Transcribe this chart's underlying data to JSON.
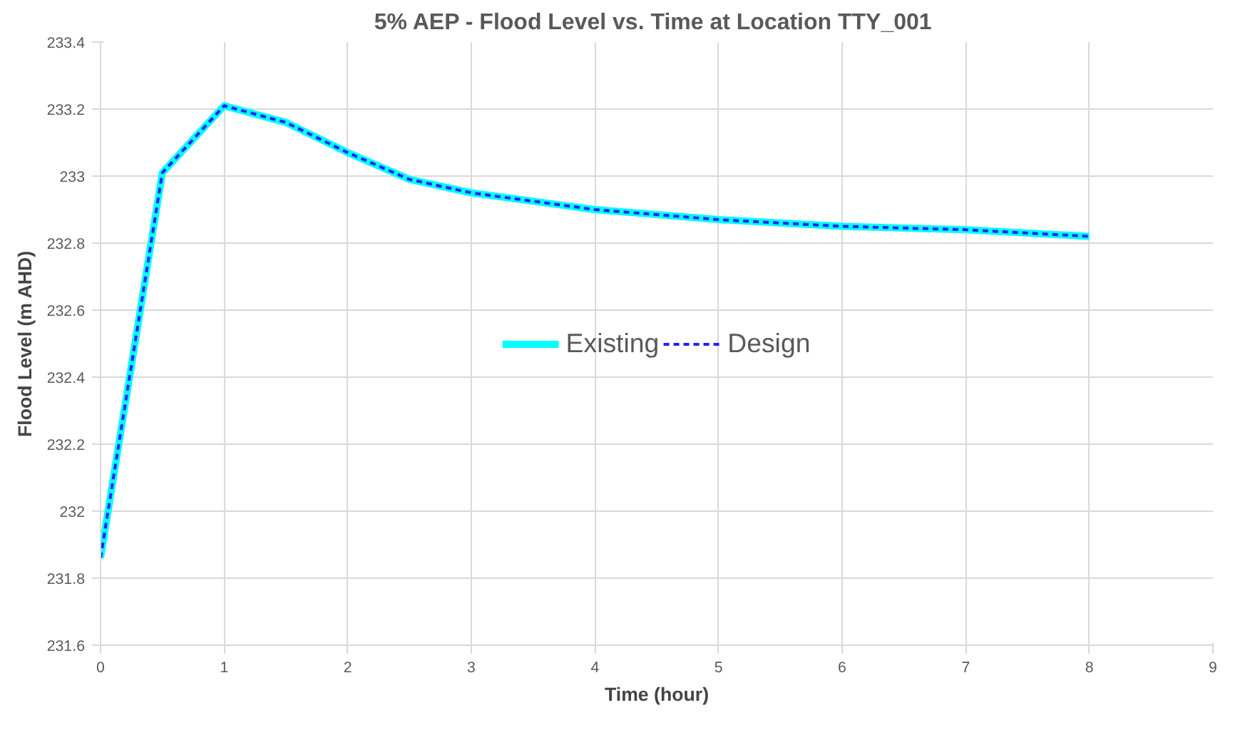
{
  "chart_data": {
    "type": "line",
    "title": "5% AEP - Flood Level vs. Time at  Location TTY_001",
    "xlabel": "Time (hour)",
    "ylabel": "Flood Level (m AHD)",
    "x": [
      0,
      0.5,
      1,
      1.5,
      2,
      2.5,
      3,
      4,
      5,
      6,
      7,
      8
    ],
    "series": [
      {
        "name": "Existing",
        "color": "#00ffff",
        "line_style": "solid",
        "values": [
          231.86,
          233.01,
          233.21,
          233.16,
          233.07,
          232.99,
          232.95,
          232.9,
          232.87,
          232.85,
          232.84,
          232.82
        ]
      },
      {
        "name": "Design",
        "color": "#2020ff",
        "line_style": "dashed",
        "values": [
          231.86,
          233.01,
          233.21,
          233.16,
          233.07,
          232.99,
          232.95,
          232.9,
          232.87,
          232.85,
          232.84,
          232.82
        ]
      }
    ],
    "xlim": [
      0,
      9
    ],
    "xticks": [
      0,
      1,
      2,
      3,
      4,
      5,
      6,
      7,
      8,
      9
    ],
    "ylim": [
      231.6,
      233.4
    ],
    "yticks": [
      231.6,
      231.8,
      232,
      232.2,
      232.4,
      232.6,
      232.8,
      233,
      233.2,
      233.4
    ],
    "grid": true,
    "legend": "center",
    "marker": "none"
  }
}
